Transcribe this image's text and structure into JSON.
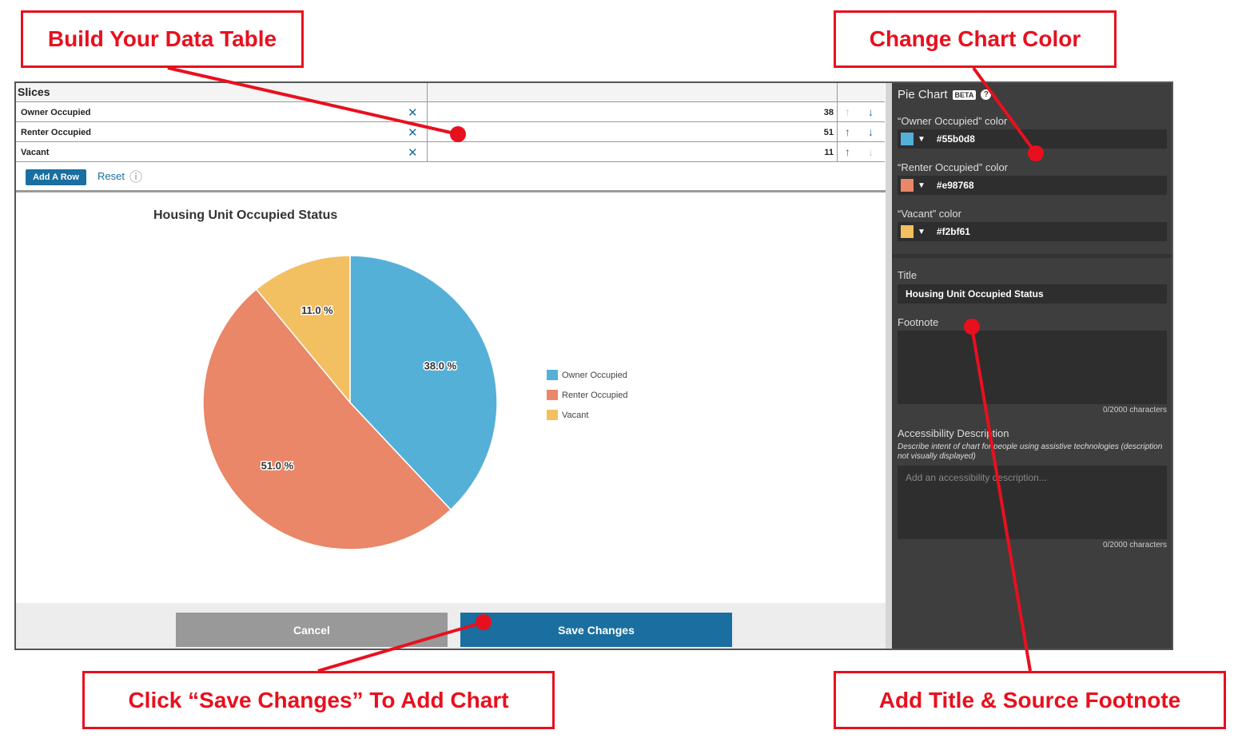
{
  "callouts": {
    "data_table": "Build Your Data Table",
    "chart_color": "Change Chart Color",
    "save": "Click “Save Changes” To Add Chart",
    "title_footnote": "Add Title & Source Footnote"
  },
  "table": {
    "header": "Slices",
    "rows": [
      {
        "label": "Owner Occupied",
        "value": "38"
      },
      {
        "label": "Renter Occupied",
        "value": "51"
      },
      {
        "label": "Vacant",
        "value": "11"
      }
    ],
    "add_row_label": "Add A Row",
    "reset_label": "Reset"
  },
  "chart_data": {
    "type": "pie",
    "title": "Housing Unit Occupied Status",
    "categories": [
      "Owner Occupied",
      "Renter Occupied",
      "Vacant"
    ],
    "values": [
      38,
      51,
      11
    ],
    "labels": [
      "38.0 %",
      "51.0 %",
      "11.0 %"
    ],
    "colors": [
      "#55b0d8",
      "#e98768",
      "#f2bf61"
    ],
    "legend": "right"
  },
  "footer": {
    "cancel_label": "Cancel",
    "save_label": "Save Changes"
  },
  "panel": {
    "title": "Pie Chart",
    "beta": "BETA",
    "colors": [
      {
        "label": "“Owner Occupied” color",
        "hex": "#55b0d8"
      },
      {
        "label": "“Renter Occupied” color",
        "hex": "#e98768"
      },
      {
        "label": "“Vacant” color",
        "hex": "#f2bf61"
      }
    ],
    "title_label": "Title",
    "title_value": "Housing Unit Occupied Status",
    "footnote_label": "Footnote",
    "footnote_count": "0/2000 characters",
    "a11y_label": "Accessibility Description",
    "a11y_desc": "Describe intent of chart for people using assistive technologies (description not visually displayed)",
    "a11y_placeholder": "Add an accessibility description...",
    "a11y_count": "0/2000 characters"
  }
}
